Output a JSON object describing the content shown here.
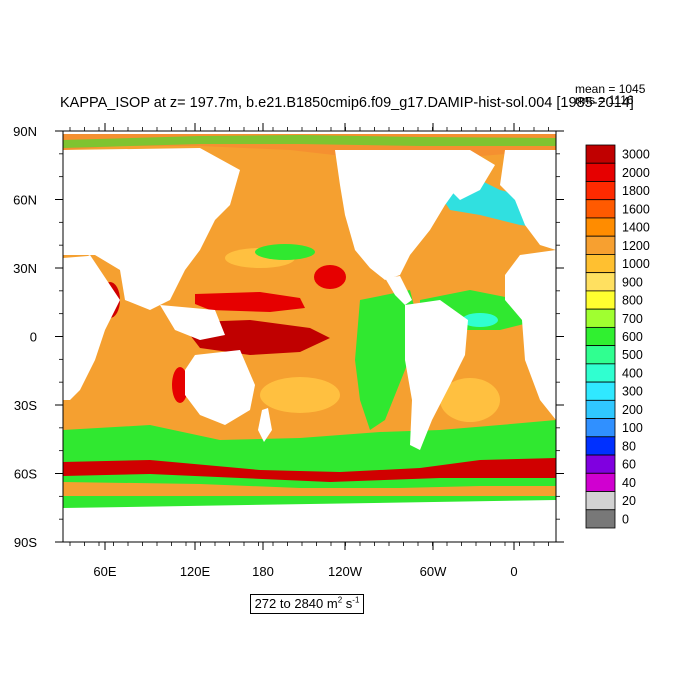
{
  "title": "KAPPA_ISOP at z= 197.7m, b.e21.B1850cmip6.f09_g17.DAMIP-hist-sol.004 [1985-2014]",
  "stats": {
    "mean": "mean = 1045",
    "rms": "rms = 1116"
  },
  "range_label": {
    "prefix": "272 to 2840 m",
    "exp1": "2",
    "unit": " s",
    "exp2": "-1"
  },
  "axes": {
    "x_ticks": [
      "60E",
      "120E",
      "180",
      "120W",
      "60W",
      "0"
    ],
    "y_ticks": [
      "90N",
      "60N",
      "30N",
      "0",
      "30S",
      "60S",
      "90S"
    ]
  },
  "colorbar": {
    "levels": [
      "3000",
      "2000",
      "1800",
      "1600",
      "1400",
      "1200",
      "1000",
      "900",
      "800",
      "700",
      "600",
      "500",
      "400",
      "300",
      "200",
      "100",
      "80",
      "60",
      "40",
      "20",
      "0"
    ],
    "colors": [
      "#c00000",
      "#e60000",
      "#ff2a00",
      "#ff5a00",
      "#ff8c00",
      "#f7a030",
      "#ffc030",
      "#ffe060",
      "#ffff30",
      "#a0ff30",
      "#30f030",
      "#30ff90",
      "#30ffd0",
      "#30e8ff",
      "#30c8ff",
      "#3090ff",
      "#0030ff",
      "#8000e0",
      "#d000d0",
      "#d2d2d2",
      "#787878"
    ]
  },
  "map_colors": {
    "land": "#ffffff",
    "ocean_base": "#f5a030",
    "southern_ocean": "#30e830",
    "antarctic_edge": "#d00000",
    "equatorial_max": "#c00000",
    "subtropical": "#ffc040",
    "arctic": "#f59030",
    "north_atlantic": "#30e0e0",
    "coastal_yellow": "#ffe040"
  }
}
